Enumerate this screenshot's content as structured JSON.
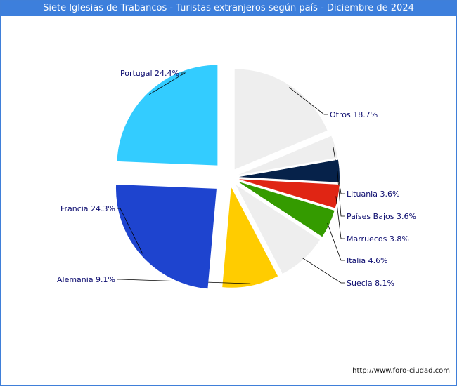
{
  "chart_data": {
    "type": "pie",
    "title": "Siete Iglesias de Trabancos - Turistas extranjeros según país - Diciembre de 2024",
    "slices": [
      {
        "name": "Otros",
        "value": 18.7,
        "label": "Otros 18.7%",
        "color": "#eeeeee"
      },
      {
        "name": "Lituania",
        "value": 3.6,
        "label": "Lituania 3.6%",
        "color": "#eeeeee"
      },
      {
        "name": "Países Bajos",
        "value": 3.6,
        "label": "Países Bajos 3.6%",
        "color": "#06224a"
      },
      {
        "name": "Marruecos",
        "value": 3.8,
        "label": "Marruecos 3.8%",
        "color": "#e02514"
      },
      {
        "name": "Italia",
        "value": 4.6,
        "label": "Italia 4.6%",
        "color": "#349b00"
      },
      {
        "name": "Suecia",
        "value": 8.1,
        "label": "Suecia 8.1%",
        "color": "#eeeeee"
      },
      {
        "name": "Alemania",
        "value": 9.1,
        "label": "Alemania 9.1%",
        "color": "#ffcc00"
      },
      {
        "name": "Francia",
        "value": 24.3,
        "label": "Francia 24.3%",
        "color": "#1e44cf"
      },
      {
        "name": "Portugal",
        "value": 24.4,
        "label": "Portugal 24.4%",
        "color": "#33ccff"
      }
    ]
  },
  "footer": {
    "source": "http://www.foro-ciudad.com"
  }
}
